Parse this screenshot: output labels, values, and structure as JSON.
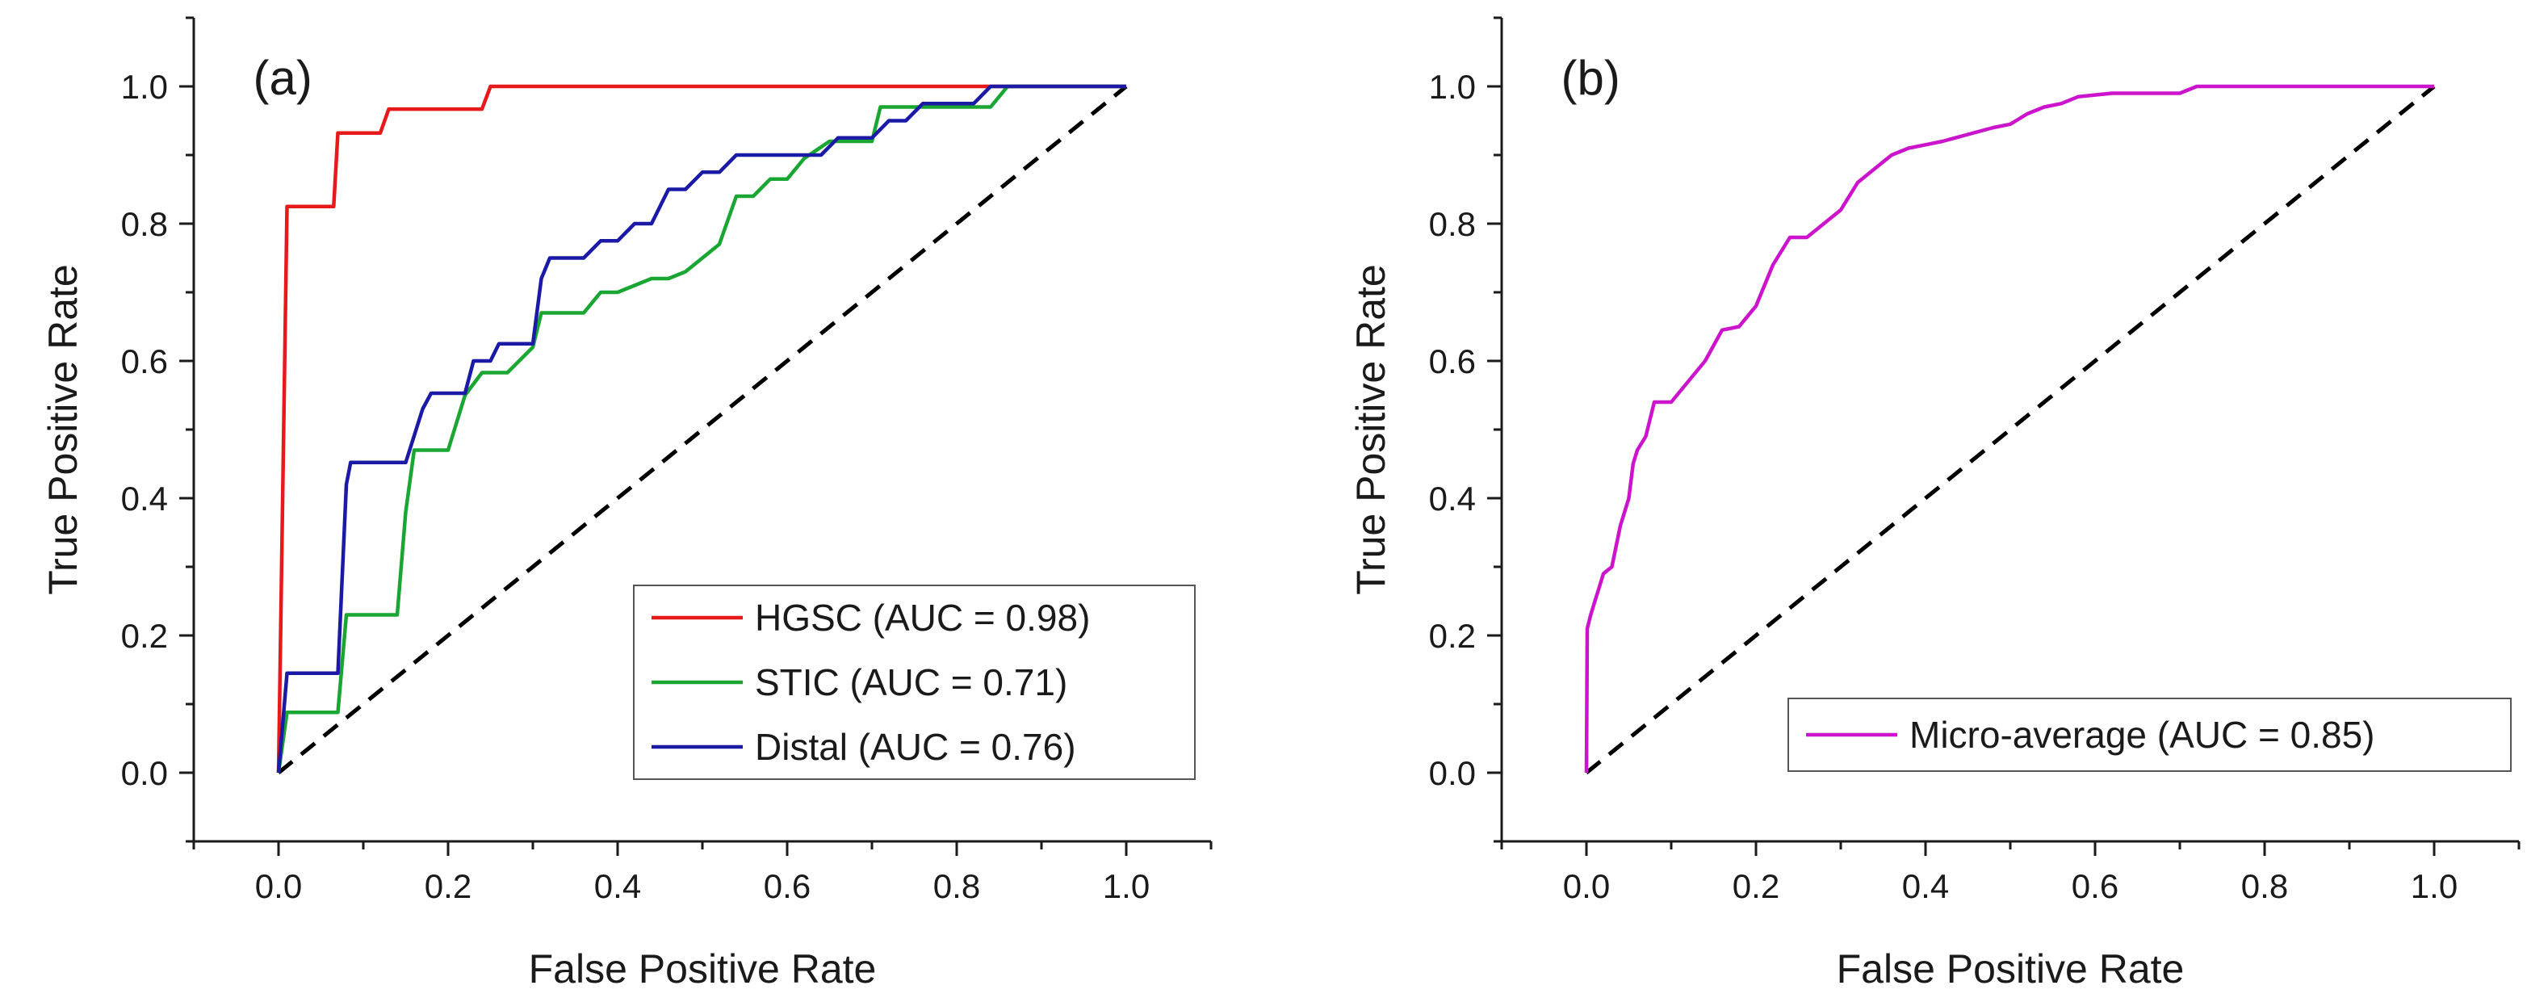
{
  "chart_data": [
    {
      "type": "line",
      "panel_label": "(a)",
      "xlabel": "False Positive Rate",
      "ylabel": "True Positive Rate",
      "xlim": [
        -0.1,
        1.1
      ],
      "ylim": [
        -0.1,
        1.1
      ],
      "xticks": [
        "0.0",
        "0.2",
        "0.4",
        "0.6",
        "0.8",
        "1.0"
      ],
      "yticks": [
        "0.0",
        "0.2",
        "0.4",
        "0.6",
        "0.8",
        "1.0"
      ],
      "legend_position": "bottom-right",
      "diagonal": {
        "x": [
          0,
          1
        ],
        "y": [
          0,
          1
        ],
        "color": "#000000",
        "style": "dashed"
      },
      "series": [
        {
          "name": "HGSC (AUC = 0.98)",
          "color": "#e8191a",
          "x": [
            0,
            0.01,
            0.01,
            0.065,
            0.07,
            0.12,
            0.13,
            0.24,
            0.25,
            0.84,
            1.0
          ],
          "y": [
            0,
            0.825,
            0.825,
            0.825,
            0.932,
            0.932,
            0.967,
            0.967,
            1.0,
            1.0,
            1.0
          ]
        },
        {
          "name": "STIC (AUC = 0.71)",
          "color": "#1aa632",
          "x": [
            0,
            0.01,
            0.07,
            0.08,
            0.14,
            0.15,
            0.16,
            0.2,
            0.22,
            0.24,
            0.27,
            0.3,
            0.31,
            0.36,
            0.38,
            0.4,
            0.44,
            0.46,
            0.48,
            0.5,
            0.52,
            0.54,
            0.56,
            0.58,
            0.6,
            0.62,
            0.65,
            0.68,
            0.7,
            0.71,
            0.72,
            0.84,
            0.86,
            1.0
          ],
          "y": [
            0,
            0.088,
            0.088,
            0.23,
            0.23,
            0.38,
            0.47,
            0.47,
            0.55,
            0.583,
            0.583,
            0.62,
            0.67,
            0.67,
            0.7,
            0.7,
            0.72,
            0.72,
            0.73,
            0.75,
            0.77,
            0.84,
            0.84,
            0.865,
            0.865,
            0.895,
            0.92,
            0.92,
            0.92,
            0.97,
            0.97,
            0.97,
            1.0,
            1.0
          ]
        },
        {
          "name": "Distal (AUC = 0.76)",
          "color": "#1a1aa6",
          "x": [
            0,
            0.01,
            0.07,
            0.08,
            0.085,
            0.15,
            0.17,
            0.18,
            0.22,
            0.23,
            0.25,
            0.26,
            0.3,
            0.31,
            0.32,
            0.36,
            0.38,
            0.4,
            0.42,
            0.44,
            0.46,
            0.48,
            0.5,
            0.52,
            0.54,
            0.56,
            0.6,
            0.64,
            0.66,
            0.7,
            0.72,
            0.74,
            0.76,
            0.8,
            0.82,
            0.84,
            1.0
          ],
          "y": [
            0,
            0.145,
            0.145,
            0.42,
            0.452,
            0.452,
            0.53,
            0.553,
            0.553,
            0.6,
            0.6,
            0.625,
            0.625,
            0.72,
            0.75,
            0.75,
            0.775,
            0.775,
            0.8,
            0.8,
            0.85,
            0.85,
            0.875,
            0.875,
            0.9,
            0.9,
            0.9,
            0.9,
            0.925,
            0.925,
            0.95,
            0.95,
            0.975,
            0.975,
            0.975,
            1.0,
            1.0
          ]
        }
      ]
    },
    {
      "type": "line",
      "panel_label": "(b)",
      "xlabel": "False Positive Rate",
      "ylabel": "True Positive Rate",
      "xlim": [
        -0.1,
        1.1
      ],
      "ylim": [
        -0.1,
        1.1
      ],
      "xticks": [
        "0.0",
        "0.2",
        "0.4",
        "0.6",
        "0.8",
        "1.0"
      ],
      "yticks": [
        "0.0",
        "0.2",
        "0.4",
        "0.6",
        "0.8",
        "1.0"
      ],
      "legend_position": "bottom-right",
      "diagonal": {
        "x": [
          0,
          1
        ],
        "y": [
          0,
          1
        ],
        "color": "#000000",
        "style": "dashed"
      },
      "series": [
        {
          "name": "Micro-average (AUC = 0.85)",
          "color": "#cc14cc",
          "x": [
            0,
            0.001,
            0.005,
            0.01,
            0.015,
            0.02,
            0.03,
            0.04,
            0.05,
            0.055,
            0.06,
            0.07,
            0.08,
            0.09,
            0.1,
            0.12,
            0.14,
            0.16,
            0.18,
            0.2,
            0.22,
            0.24,
            0.26,
            0.28,
            0.3,
            0.32,
            0.34,
            0.36,
            0.38,
            0.4,
            0.42,
            0.45,
            0.48,
            0.5,
            0.52,
            0.54,
            0.56,
            0.58,
            0.62,
            0.66,
            0.7,
            0.72,
            0.8,
            0.9,
            1.0
          ],
          "y": [
            0,
            0.21,
            0.23,
            0.25,
            0.27,
            0.29,
            0.3,
            0.36,
            0.4,
            0.45,
            0.47,
            0.49,
            0.54,
            0.54,
            0.54,
            0.57,
            0.6,
            0.645,
            0.65,
            0.68,
            0.74,
            0.78,
            0.78,
            0.8,
            0.82,
            0.86,
            0.88,
            0.9,
            0.91,
            0.915,
            0.92,
            0.93,
            0.94,
            0.945,
            0.96,
            0.97,
            0.975,
            0.985,
            0.99,
            0.99,
            0.99,
            1.0,
            1.0,
            1.0,
            1.0
          ]
        }
      ]
    }
  ]
}
